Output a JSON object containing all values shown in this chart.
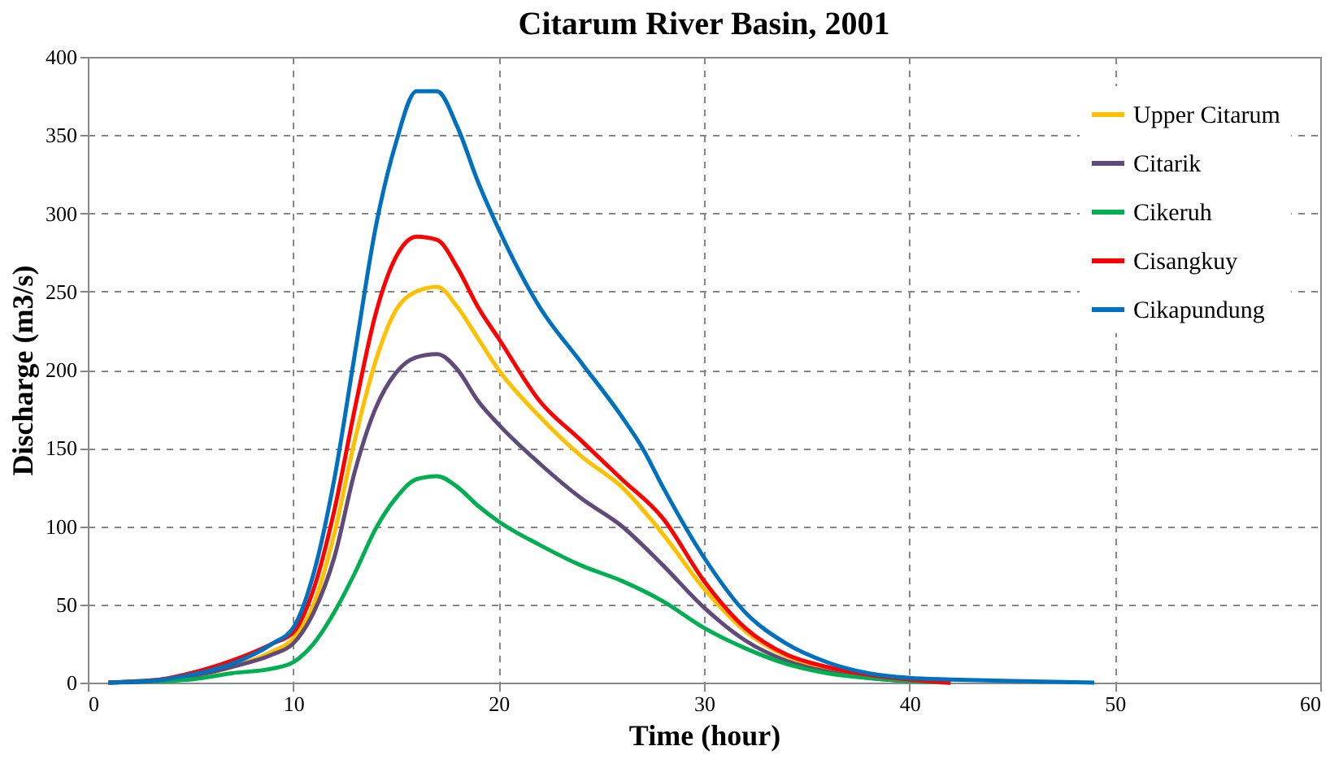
{
  "chart_data": {
    "type": "line",
    "title": "Citarum River Basin, 2001",
    "xlabel": "Time (hour)",
    "ylabel": "Discharge (m3/s)",
    "xlim": [
      0,
      60
    ],
    "xticks": [
      0,
      10,
      20,
      30,
      40,
      50,
      60
    ],
    "ylim": [
      0,
      400
    ],
    "yticks": [
      0,
      50,
      100,
      150,
      200,
      250,
      300,
      350,
      400
    ],
    "grid": true,
    "legend": "top right",
    "marker": "none",
    "line_style": "solid",
    "series": [
      {
        "name": "Upper Citarum",
        "color": "#ffc000",
        "x": [
          1,
          5,
          7,
          9,
          10,
          11,
          12,
          13,
          14,
          15,
          16,
          17,
          18,
          19,
          20,
          22,
          24,
          26,
          28,
          30,
          32,
          34,
          36,
          38
        ],
        "values": [
          0,
          4,
          10,
          20,
          28,
          50,
          95,
          155,
          205,
          238,
          250,
          253,
          240,
          220,
          200,
          170,
          145,
          125,
          95,
          60,
          33,
          17,
          9,
          4
        ]
      },
      {
        "name": "Citarik",
        "color": "#604a7b",
        "x": [
          1,
          5,
          7,
          9,
          10,
          11,
          12,
          13,
          14,
          15,
          16,
          17,
          18,
          19,
          20,
          22,
          24,
          26,
          28,
          30,
          32,
          34,
          36,
          38,
          40,
          42
        ],
        "values": [
          0,
          4,
          10,
          18,
          25,
          45,
          80,
          135,
          175,
          198,
          208,
          210,
          200,
          180,
          165,
          140,
          118,
          100,
          75,
          48,
          27,
          14,
          7,
          3,
          1,
          0
        ]
      },
      {
        "name": "Cikeruh",
        "color": "#00b050",
        "x": [
          1,
          5,
          7,
          9,
          10,
          11,
          12,
          13,
          14,
          15,
          16,
          17,
          18,
          19,
          20,
          22,
          24,
          26,
          28,
          30,
          32,
          34,
          36,
          38,
          40,
          42
        ],
        "values": [
          0,
          2,
          6,
          9,
          13,
          25,
          45,
          70,
          98,
          118,
          130,
          132,
          125,
          113,
          103,
          88,
          75,
          65,
          52,
          35,
          22,
          12,
          6,
          3,
          1,
          0
        ]
      },
      {
        "name": "Cisangkuy",
        "color": "#ff0000",
        "x": [
          1,
          3,
          5,
          7,
          9,
          10,
          11,
          12,
          13,
          14,
          15,
          16,
          17,
          18,
          19,
          20,
          22,
          24,
          26,
          28,
          30,
          32,
          34,
          36,
          38,
          40,
          42
        ],
        "values": [
          0,
          1,
          6,
          14,
          25,
          32,
          60,
          110,
          175,
          235,
          272,
          285,
          283,
          265,
          240,
          220,
          180,
          155,
          130,
          105,
          65,
          35,
          18,
          10,
          5,
          2,
          0
        ]
      },
      {
        "name": "Cikapundung",
        "color": "#0070c0",
        "x": [
          1,
          3,
          5,
          7,
          9,
          10,
          11,
          12,
          13,
          14,
          15,
          16,
          17,
          18,
          19,
          20,
          22,
          24,
          26,
          27,
          28,
          30,
          32,
          34,
          36,
          38,
          40,
          42,
          45,
          49
        ],
        "values": [
          0,
          1,
          5,
          12,
          25,
          35,
          70,
          130,
          210,
          290,
          345,
          378,
          378,
          355,
          320,
          290,
          240,
          205,
          170,
          150,
          125,
          80,
          45,
          25,
          13,
          6,
          3,
          2,
          1,
          0
        ]
      }
    ]
  }
}
